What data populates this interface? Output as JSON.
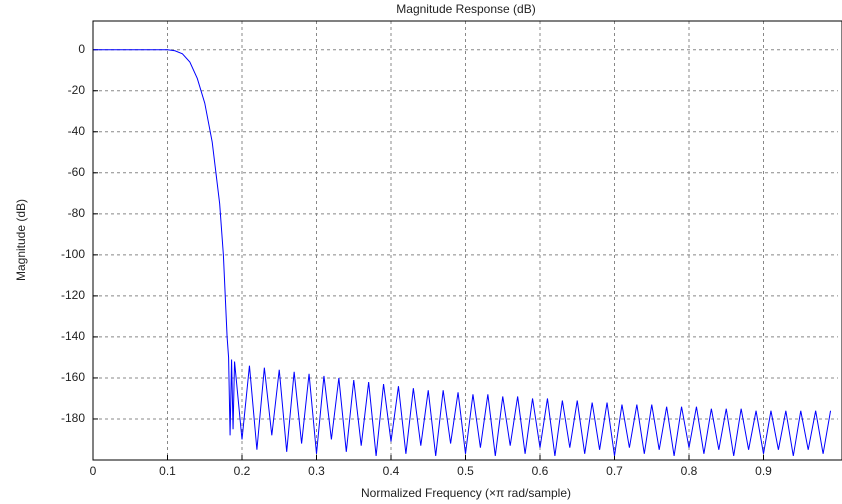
{
  "chart_data": {
    "type": "line",
    "title": "Magnitude Response (dB)",
    "x_label": "Normalized Frequency (×π rad/sample)",
    "y_label": "Magnitude (dB)",
    "xlim": [
      0,
      1
    ],
    "ylim": [
      -200,
      14
    ],
    "xticks": [
      0,
      0.1,
      0.2,
      0.3,
      0.4,
      0.5,
      0.6,
      0.7,
      0.8,
      0.9
    ],
    "yticks": [
      0,
      -20,
      -40,
      -60,
      -80,
      -100,
      -120,
      -140,
      -160,
      -180
    ],
    "grid": true,
    "series": [
      {
        "color": "#0000ff",
        "x": [
          0,
          0.05,
          0.1,
          0.11,
          0.12,
          0.13,
          0.14,
          0.15,
          0.16,
          0.17,
          0.175,
          0.18,
          0.182,
          0.184,
          0.186,
          0.188,
          0.19,
          0.2,
          0.21,
          0.22,
          0.23,
          0.24,
          0.25,
          0.26,
          0.27,
          0.28,
          0.29,
          0.3,
          0.31,
          0.32,
          0.33,
          0.34,
          0.35,
          0.36,
          0.37,
          0.38,
          0.39,
          0.4,
          0.41,
          0.42,
          0.43,
          0.44,
          0.45,
          0.46,
          0.47,
          0.48,
          0.49,
          0.5,
          0.51,
          0.52,
          0.53,
          0.54,
          0.55,
          0.56,
          0.57,
          0.58,
          0.59,
          0.6,
          0.61,
          0.62,
          0.63,
          0.64,
          0.65,
          0.66,
          0.67,
          0.68,
          0.69,
          0.7,
          0.71,
          0.72,
          0.73,
          0.74,
          0.75,
          0.76,
          0.77,
          0.78,
          0.79,
          0.8,
          0.81,
          0.82,
          0.83,
          0.84,
          0.85,
          0.86,
          0.87,
          0.88,
          0.89,
          0.9,
          0.91,
          0.92,
          0.93,
          0.94,
          0.95,
          0.96,
          0.97,
          0.98,
          0.99
        ],
        "values": [
          0,
          0,
          0,
          -0.5,
          -2,
          -6,
          -14,
          -26,
          -45,
          -75,
          -100,
          -140,
          -150,
          -188,
          -151,
          -185,
          -152,
          -190,
          -154,
          -195,
          -155,
          -188,
          -156,
          -196,
          -157,
          -192,
          -158,
          -197,
          -159,
          -190,
          -160,
          -196,
          -161,
          -193,
          -162,
          -198,
          -163,
          -191,
          -164,
          -197,
          -165,
          -193,
          -166,
          -198,
          -166,
          -192,
          -167,
          -197,
          -168,
          -194,
          -168,
          -198,
          -169,
          -193,
          -169,
          -197,
          -170,
          -194,
          -170,
          -198,
          -171,
          -194,
          -171,
          -197,
          -172,
          -195,
          -172,
          -198,
          -173,
          -194,
          -173,
          -197,
          -173,
          -195,
          -174,
          -198,
          -174,
          -194,
          -174,
          -197,
          -175,
          -195,
          -175,
          -198,
          -175,
          -195,
          -176,
          -197,
          -176,
          -195,
          -176,
          -198,
          -176,
          -195,
          -176,
          -197,
          -176
        ]
      }
    ]
  }
}
